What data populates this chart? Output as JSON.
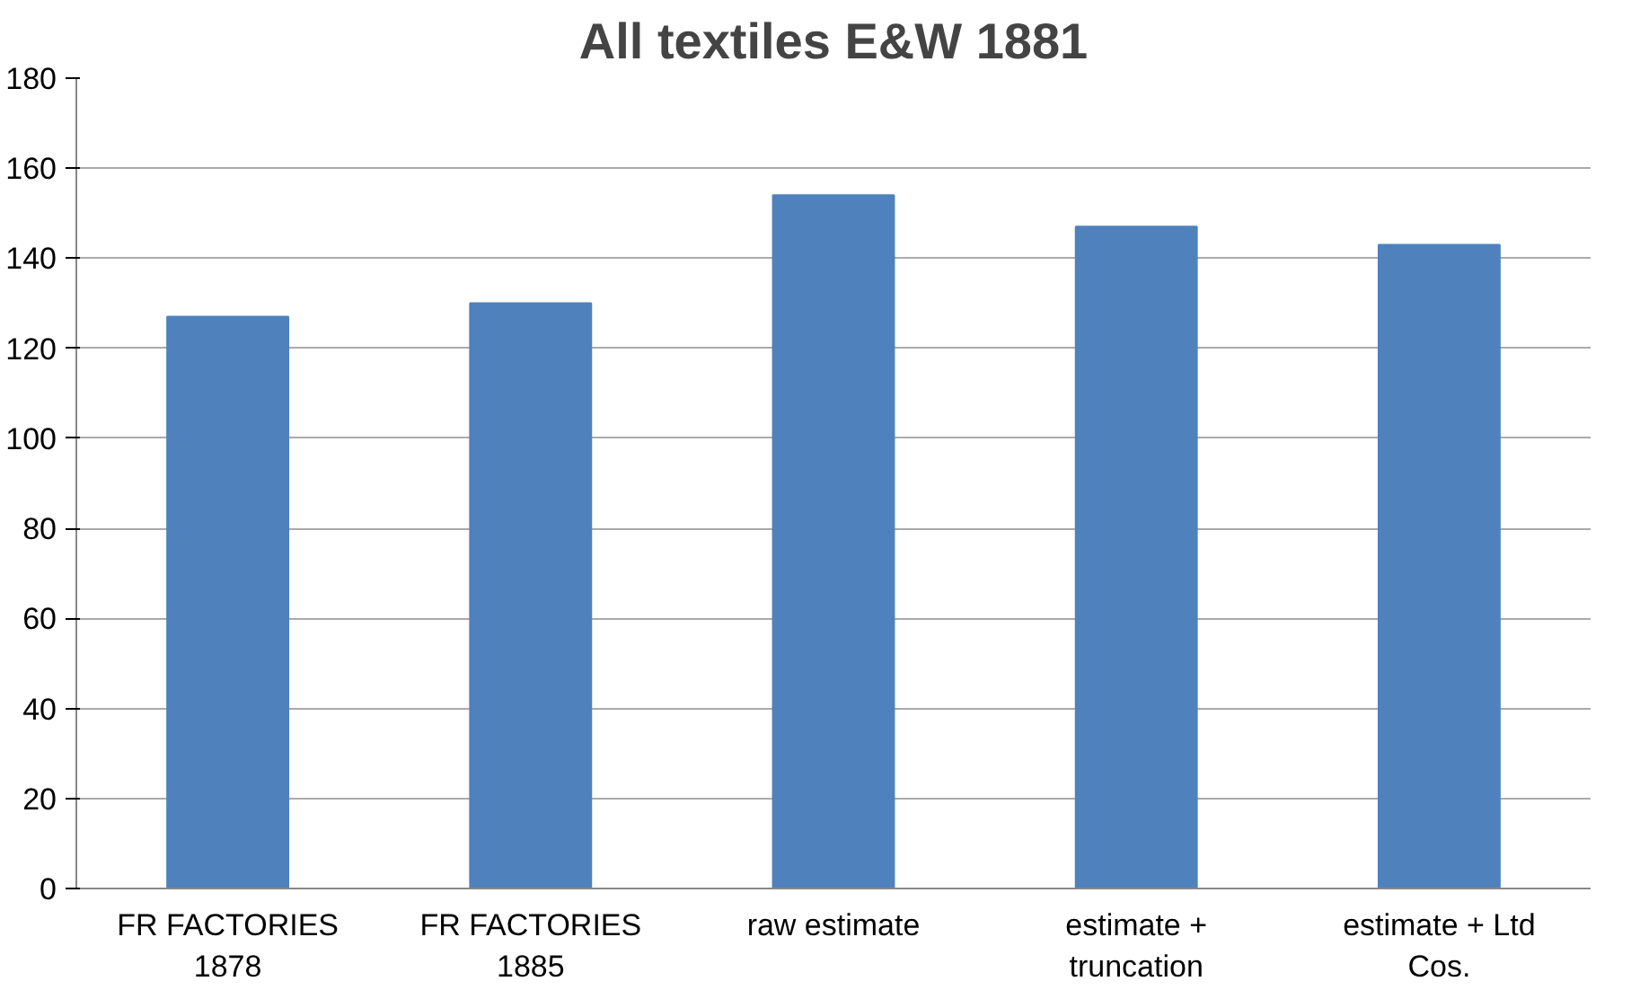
{
  "chart_data": {
    "type": "bar",
    "title": "All textiles E&W 1881",
    "categories": [
      "FR FACTORIES 1878",
      "FR FACTORIES 1885",
      "raw estimate",
      "estimate + truncation",
      "estimate + Ltd Cos."
    ],
    "values": [
      127,
      130,
      154,
      147,
      143
    ],
    "color": "#4f81bd",
    "ylim": [
      0,
      180
    ],
    "yticks": [
      0,
      20,
      40,
      60,
      80,
      100,
      120,
      140,
      160,
      180
    ],
    "grid": "y"
  }
}
